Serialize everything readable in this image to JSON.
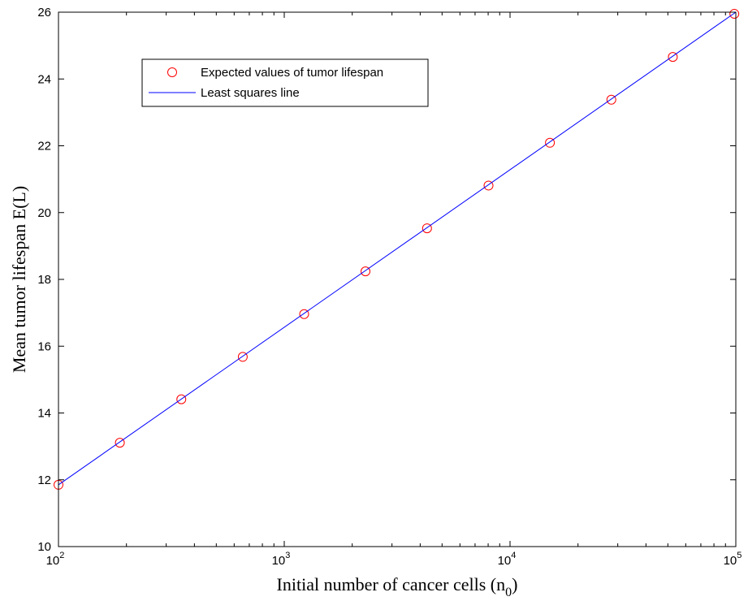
{
  "chart_data": {
    "type": "scatter",
    "title": "",
    "xscale": "log",
    "xlim": [
      100,
      100000
    ],
    "ylim": [
      10,
      26
    ],
    "xlabel": {
      "main": "Initial number of cancer cells (n",
      "sub": "0",
      "close": ")"
    },
    "ylabel": "Mean tumor lifespan E(L)",
    "grid": false,
    "legend_position": "top-left",
    "x_ticks": [
      {
        "base": "10",
        "exp": "2",
        "value": 100
      },
      {
        "base": "10",
        "exp": "3",
        "value": 1000
      },
      {
        "base": "10",
        "exp": "4",
        "value": 10000
      },
      {
        "base": "10",
        "exp": "5",
        "value": 100000
      }
    ],
    "y_ticks": [
      {
        "label": "10",
        "value": 10
      },
      {
        "label": "12",
        "value": 12
      },
      {
        "label": "14",
        "value": 14
      },
      {
        "label": "16",
        "value": 16
      },
      {
        "label": "18",
        "value": 18
      },
      {
        "label": "20",
        "value": 20
      },
      {
        "label": "22",
        "value": 22
      },
      {
        "label": "24",
        "value": 24
      },
      {
        "label": "26",
        "value": 26
      }
    ],
    "series": [
      {
        "name": "Expected values of tumor lifespan",
        "kind": "scatter",
        "marker": "circle",
        "color": "#ff0000",
        "points": [
          [
            100,
            11.85
          ],
          [
            187,
            13.11
          ],
          [
            350,
            14.41
          ],
          [
            655,
            15.68
          ],
          [
            1225,
            16.96
          ],
          [
            2290,
            18.24
          ],
          [
            4290,
            19.53
          ],
          [
            8030,
            20.81
          ],
          [
            15020,
            22.09
          ],
          [
            28100,
            23.38
          ],
          [
            52600,
            24.66
          ],
          [
            98500,
            25.95
          ]
        ]
      },
      {
        "name": "Least squares line",
        "kind": "line",
        "color": "#0000ff",
        "points": [
          [
            100,
            11.85
          ],
          [
            100000,
            26.0
          ]
        ]
      }
    ]
  }
}
